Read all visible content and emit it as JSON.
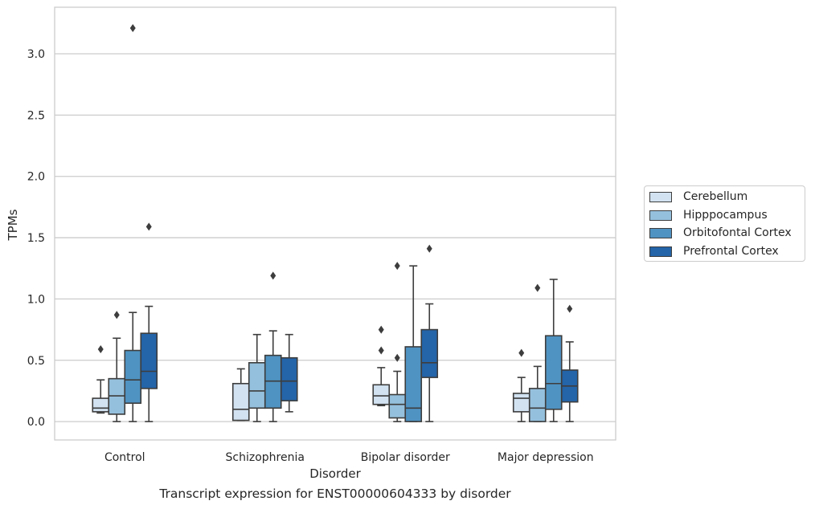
{
  "caption": "Transcript expression for ENST00000604333 by disorder",
  "chart_data": {
    "type": "box",
    "xlabel": "Disorder",
    "ylabel": "TPMs",
    "ylim": [
      -0.15,
      3.38
    ],
    "yticks": [
      0.0,
      0.5,
      1.0,
      1.5,
      2.0,
      2.5,
      3.0
    ],
    "ytick_labels": [
      "0.0",
      "0.5",
      "1.0",
      "1.5",
      "2.0",
      "2.5",
      "3.0"
    ],
    "grid": "horizontal",
    "legend_position": "right-outside",
    "categories": [
      "Control",
      "Schizophrenia",
      "Bipolar disorder",
      "Major depression"
    ],
    "series": [
      {
        "name": "Cerebellum",
        "color": "#d2e2f1",
        "boxes": [
          {
            "whisker_low": 0.07,
            "q1": 0.08,
            "median": 0.11,
            "q3": 0.19,
            "whisker_high": 0.34,
            "outliers": [
              0.59
            ]
          },
          {
            "whisker_low": 0.01,
            "q1": 0.01,
            "median": 0.1,
            "q3": 0.31,
            "whisker_high": 0.43,
            "outliers": []
          },
          {
            "whisker_low": 0.13,
            "q1": 0.14,
            "median": 0.21,
            "q3": 0.3,
            "whisker_high": 0.44,
            "outliers": [
              0.58,
              0.75
            ]
          },
          {
            "whisker_low": 0.0,
            "q1": 0.08,
            "median": 0.19,
            "q3": 0.23,
            "whisker_high": 0.36,
            "outliers": [
              0.56
            ]
          }
        ]
      },
      {
        "name": "Hipppocampus",
        "color": "#95c0dd",
        "boxes": [
          {
            "whisker_low": 0.0,
            "q1": 0.06,
            "median": 0.21,
            "q3": 0.35,
            "whisker_high": 0.68,
            "outliers": [
              0.87
            ]
          },
          {
            "whisker_low": 0.0,
            "q1": 0.11,
            "median": 0.25,
            "q3": 0.48,
            "whisker_high": 0.71,
            "outliers": []
          },
          {
            "whisker_low": 0.0,
            "q1": 0.03,
            "median": 0.14,
            "q3": 0.22,
            "whisker_high": 0.41,
            "outliers": [
              0.52,
              1.27
            ]
          },
          {
            "whisker_low": 0.0,
            "q1": 0.0,
            "median": 0.11,
            "q3": 0.27,
            "whisker_high": 0.45,
            "outliers": [
              1.09
            ]
          }
        ]
      },
      {
        "name": "Orbitofontal Cortex",
        "color": "#4f93c2",
        "boxes": [
          {
            "whisker_low": 0.0,
            "q1": 0.15,
            "median": 0.34,
            "q3": 0.58,
            "whisker_high": 0.89,
            "outliers": [
              3.21
            ]
          },
          {
            "whisker_low": 0.0,
            "q1": 0.11,
            "median": 0.33,
            "q3": 0.54,
            "whisker_high": 0.74,
            "outliers": [
              1.19
            ]
          },
          {
            "whisker_low": 0.0,
            "q1": 0.0,
            "median": 0.11,
            "q3": 0.61,
            "whisker_high": 1.27,
            "outliers": []
          },
          {
            "whisker_low": 0.0,
            "q1": 0.1,
            "median": 0.31,
            "q3": 0.7,
            "whisker_high": 1.16,
            "outliers": []
          }
        ]
      },
      {
        "name": "Prefrontal Cortex",
        "color": "#2464a8",
        "boxes": [
          {
            "whisker_low": 0.0,
            "q1": 0.27,
            "median": 0.41,
            "q3": 0.72,
            "whisker_high": 0.94,
            "outliers": [
              1.59
            ]
          },
          {
            "whisker_low": 0.08,
            "q1": 0.17,
            "median": 0.33,
            "q3": 0.52,
            "whisker_high": 0.71,
            "outliers": []
          },
          {
            "whisker_low": 0.0,
            "q1": 0.36,
            "median": 0.48,
            "q3": 0.75,
            "whisker_high": 0.96,
            "outliers": [
              1.41
            ]
          },
          {
            "whisker_low": 0.0,
            "q1": 0.16,
            "median": 0.29,
            "q3": 0.42,
            "whisker_high": 0.65,
            "outliers": [
              0.92
            ]
          }
        ]
      }
    ]
  }
}
